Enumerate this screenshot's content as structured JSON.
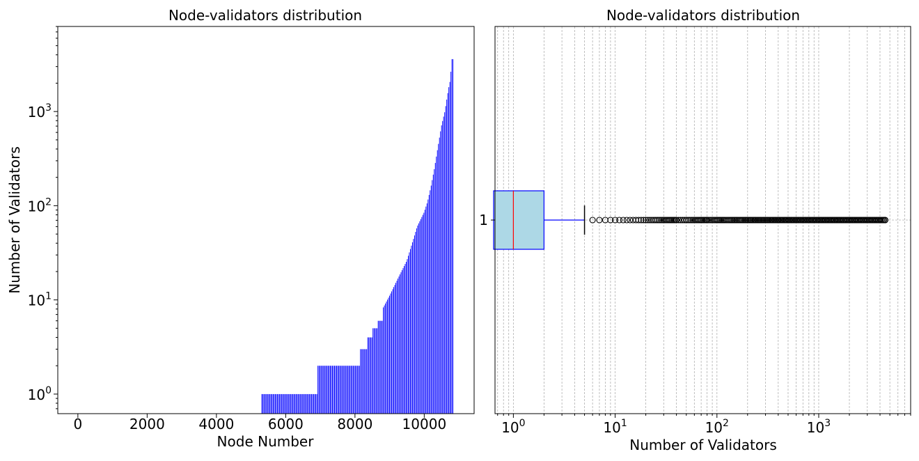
{
  "chart_data": [
    {
      "type": "bar",
      "title": "Node-validators distribution",
      "xlabel": "Node Number",
      "ylabel": "Number of Validators",
      "yscale": "log",
      "xlim": [
        -580,
        11440
      ],
      "ylim": [
        0.62,
        8000
      ],
      "grid": false,
      "bar_color": "#0000ff",
      "x_ticks": [
        0,
        2000,
        4000,
        6000,
        8000,
        10000
      ],
      "x_tick_labels": [
        "0",
        "2000",
        "4000",
        "6000",
        "8000",
        "10000"
      ],
      "y_ticks": [
        1,
        10,
        100,
        1000
      ],
      "y_tick_labels": [
        {
          "base": "10",
          "exp": "0"
        },
        {
          "base": "10",
          "exp": "1"
        },
        {
          "base": "10",
          "exp": "2"
        },
        {
          "base": "10",
          "exp": "3"
        }
      ],
      "total_nodes": 10830,
      "nonzero_start_node": 5300,
      "sorted_values_profile": [
        {
          "node": 5300,
          "value": 1
        },
        {
          "node": 6920,
          "value": 2
        },
        {
          "node": 8150,
          "value": 3
        },
        {
          "node": 8350,
          "value": 4
        },
        {
          "node": 8500,
          "value": 5
        },
        {
          "node": 8650,
          "value": 6
        },
        {
          "node": 8800,
          "value": 8
        },
        {
          "node": 9000,
          "value": 11
        },
        {
          "node": 9250,
          "value": 17
        },
        {
          "node": 9500,
          "value": 26
        },
        {
          "node": 9700,
          "value": 45
        },
        {
          "node": 9800,
          "value": 60
        },
        {
          "node": 10000,
          "value": 85
        },
        {
          "node": 10100,
          "value": 110
        },
        {
          "node": 10200,
          "value": 160
        },
        {
          "node": 10300,
          "value": 250
        },
        {
          "node": 10400,
          "value": 420
        },
        {
          "node": 10500,
          "value": 700
        },
        {
          "node": 10600,
          "value": 1000
        },
        {
          "node": 10700,
          "value": 1700
        },
        {
          "node": 10760,
          "value": 2200
        },
        {
          "node": 10800,
          "value": 3600
        },
        {
          "node": 10830,
          "value": 3600
        }
      ]
    },
    {
      "type": "box",
      "title": "Node-validators distribution",
      "xlabel": "Number of Validators",
      "orientation": "horizontal",
      "xscale": "log",
      "xlim": [
        0.66,
        8000
      ],
      "grid": true,
      "y_tick_label": "1",
      "x_ticks": [
        1,
        10,
        100,
        1000
      ],
      "x_tick_labels": [
        {
          "base": "10",
          "exp": "0"
        },
        {
          "base": "10",
          "exp": "1"
        },
        {
          "base": "10",
          "exp": "2"
        },
        {
          "base": "10",
          "exp": "3"
        }
      ],
      "box": {
        "whisker_low": 0,
        "q1": 0,
        "median": 1,
        "q3": 2,
        "whisker_high": 5
      },
      "box_fill": "#add8e6",
      "box_edge": "#0000ff",
      "median_color": "#ff0000",
      "whisker_color": "#0000ff",
      "cap_color": "#000000",
      "flier_range": [
        6,
        4500
      ]
    }
  ]
}
